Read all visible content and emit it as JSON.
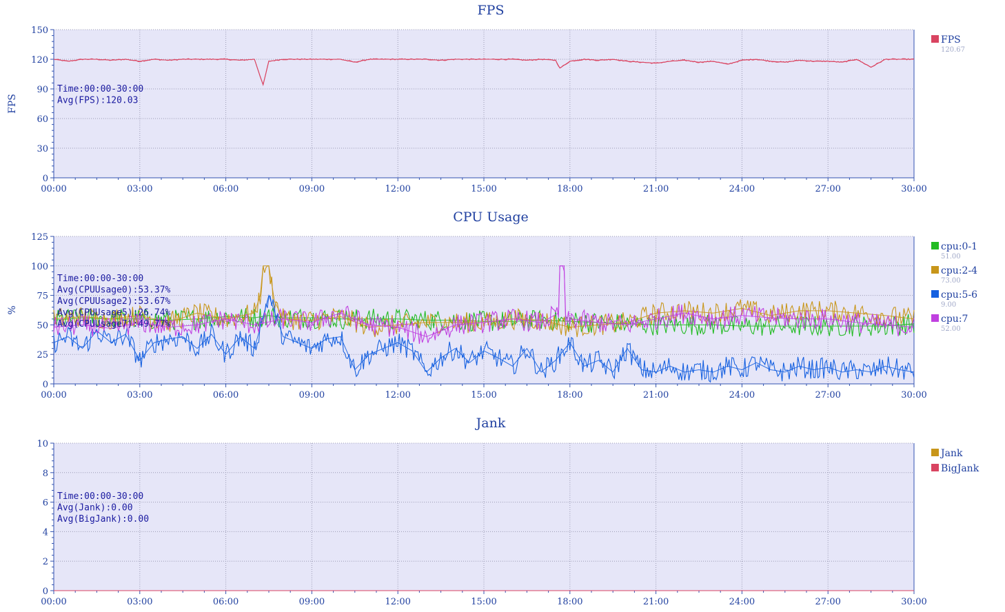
{
  "chart_data": [
    {
      "type": "line",
      "title": "FPS",
      "ylabel": "FPS",
      "ylim": [
        0,
        150
      ],
      "yticks": [
        "0",
        "30",
        "60",
        "90",
        "120",
        "150"
      ],
      "x_range_minutes": [
        0,
        30
      ],
      "xticks": [
        "00:00",
        "03:00",
        "06:00",
        "09:00",
        "12:00",
        "15:00",
        "18:00",
        "21:00",
        "24:00",
        "27:00",
        "30:00"
      ],
      "info_lines": [
        "Time:00:00-30:00",
        "Avg(FPS):120.03"
      ],
      "grid": true,
      "legend_position": "right",
      "series": [
        {
          "name": "FPS",
          "legend_value": "120.67",
          "color": "#d94461",
          "x": [
            0,
            0.5,
            1,
            1.5,
            2,
            2.5,
            3,
            3.5,
            4,
            4.5,
            5,
            5.5,
            6,
            6.5,
            7,
            7.3,
            7.5,
            8,
            8.5,
            9,
            9.5,
            10,
            10.5,
            11,
            11.5,
            12,
            12.5,
            13,
            13.5,
            14,
            14.5,
            15,
            15.5,
            16,
            16.5,
            17,
            17.5,
            17.65,
            18,
            18.5,
            19,
            19.5,
            20,
            20.5,
            21,
            21.5,
            22,
            22.5,
            23,
            23.5,
            24,
            24.5,
            25,
            25.5,
            26,
            26.5,
            27,
            27.5,
            28,
            28.5,
            29,
            29.5,
            30
          ],
          "values": [
            120,
            118,
            120,
            120,
            119,
            120,
            118,
            120,
            119,
            120,
            120,
            120,
            120,
            119,
            120,
            94,
            118,
            120,
            120,
            120,
            120,
            120,
            117,
            120,
            120,
            120,
            120,
            120,
            119,
            120,
            120,
            120,
            120,
            120,
            119,
            120,
            119,
            111,
            118,
            120,
            119,
            120,
            118,
            117,
            116,
            118,
            119,
            117,
            118,
            115,
            119,
            120,
            118,
            117,
            119,
            118,
            118,
            117,
            120,
            112,
            120,
            120,
            120
          ]
        }
      ]
    },
    {
      "type": "line",
      "title": "CPU Usage",
      "ylabel": "%",
      "ylim": [
        0,
        125
      ],
      "yticks": [
        "0",
        "25",
        "50",
        "75",
        "100",
        "125"
      ],
      "x_range_minutes": [
        0,
        30
      ],
      "xticks": [
        "00:00",
        "03:00",
        "06:00",
        "09:00",
        "12:00",
        "15:00",
        "18:00",
        "21:00",
        "24:00",
        "27:00",
        "30:00"
      ],
      "info_lines": [
        "Time:00:00-30:00",
        "Avg(CPUUsage0):53.37%",
        "Avg(CPUUsage2):53.67%",
        "Avg(CPUUsage5):26.74%",
        "Avg(CPUUsage7):49.77%"
      ],
      "grid": true,
      "legend_position": "right",
      "series": [
        {
          "name": "cpu:0-1",
          "legend_value": "51.00",
          "color": "#22bb22",
          "x": [
            0,
            1,
            2,
            3,
            4,
            5,
            6,
            7,
            7.5,
            8,
            9,
            10,
            11,
            12,
            13,
            14,
            15,
            16,
            17,
            18,
            19,
            20,
            21,
            22,
            23,
            24,
            25,
            26,
            27,
            28,
            29,
            30
          ],
          "values": [
            54,
            56,
            55,
            55,
            54,
            55,
            57,
            56,
            58,
            56,
            56,
            55,
            55,
            55,
            54,
            54,
            53,
            53,
            54,
            53,
            52,
            51,
            50,
            50,
            50,
            49,
            49,
            49,
            49,
            49,
            49,
            51
          ]
        },
        {
          "name": "cpu:2-4",
          "legend_value": "73.00",
          "color": "#c8961a",
          "x": [
            0,
            1,
            2,
            3,
            4,
            5,
            6,
            7,
            7.2,
            7.3,
            7.5,
            7.7,
            8,
            9,
            10,
            11,
            12,
            13,
            14,
            15,
            16,
            17,
            18,
            19,
            20,
            21,
            22,
            23,
            24,
            25,
            26,
            27,
            28,
            29,
            30
          ],
          "values": [
            55,
            57,
            55,
            58,
            52,
            60,
            55,
            60,
            75,
            100,
            100,
            70,
            55,
            54,
            57,
            48,
            50,
            52,
            52,
            52,
            55,
            54,
            48,
            50,
            52,
            60,
            62,
            60,
            64,
            58,
            62,
            62,
            60,
            58,
            55
          ]
        },
        {
          "name": "cpu:5-6",
          "legend_value": "9.00",
          "color": "#1560e0",
          "x": [
            0,
            0.5,
            1,
            1.5,
            2,
            2.5,
            3,
            3.5,
            4,
            4.5,
            5,
            5.5,
            6,
            6.5,
            7,
            7.5,
            8,
            8.5,
            9,
            9.5,
            10,
            10.5,
            11,
            11.5,
            12,
            12.5,
            13,
            13.5,
            14,
            14.5,
            15,
            15.5,
            16,
            16.5,
            17,
            17.5,
            18,
            18.5,
            19,
            19.5,
            20,
            20.5,
            21,
            21.5,
            22,
            22.5,
            23,
            23.5,
            24,
            24.5,
            25,
            25.5,
            26,
            26.5,
            27,
            27.5,
            28,
            28.5,
            29,
            29.5,
            30
          ],
          "values": [
            35,
            40,
            30,
            45,
            35,
            42,
            20,
            35,
            38,
            40,
            30,
            42,
            25,
            40,
            30,
            75,
            40,
            35,
            30,
            38,
            40,
            12,
            25,
            30,
            35,
            28,
            10,
            22,
            30,
            18,
            28,
            22,
            15,
            30,
            10,
            20,
            35,
            15,
            20,
            10,
            30,
            12,
            10,
            15,
            10,
            12,
            10,
            15,
            12,
            18,
            12,
            10,
            15,
            12,
            14,
            10,
            12,
            10,
            15,
            12,
            10
          ]
        },
        {
          "name": "cpu:7",
          "legend_value": "52.00",
          "color": "#c040e0",
          "x": [
            0,
            1,
            2,
            3,
            4,
            5,
            6,
            7,
            8,
            9,
            10,
            11,
            12,
            13,
            14,
            15,
            16,
            17,
            17.6,
            17.65,
            17.8,
            17.85,
            18,
            19,
            20,
            21,
            22,
            23,
            24,
            25,
            26,
            27,
            28,
            29,
            30
          ],
          "values": [
            48,
            50,
            47,
            52,
            48,
            50,
            55,
            50,
            55,
            52,
            60,
            50,
            48,
            40,
            50,
            52,
            55,
            52,
            60,
            100,
            100,
            50,
            55,
            52,
            50,
            55,
            60,
            55,
            58,
            56,
            55,
            55,
            52,
            50,
            48
          ]
        }
      ]
    },
    {
      "type": "line",
      "title": "Jank",
      "ylabel": "",
      "ylim": [
        0,
        10
      ],
      "yticks": [
        "0",
        "2",
        "4",
        "6",
        "8",
        "10"
      ],
      "x_range_minutes": [
        0,
        30
      ],
      "xticks": [
        "00:00",
        "03:00",
        "06:00",
        "09:00",
        "12:00",
        "15:00",
        "18:00",
        "21:00",
        "24:00",
        "27:00",
        "30:00"
      ],
      "info_lines": [
        "Time:00:00-30:00",
        "Avg(Jank):0.00",
        "Avg(BigJank):0.00"
      ],
      "grid": true,
      "legend_position": "right",
      "series": [
        {
          "name": "Jank",
          "legend_value": "",
          "color": "#c8961a",
          "x": [
            0,
            30
          ],
          "values": [
            0,
            0
          ]
        },
        {
          "name": "BigJank",
          "legend_value": "",
          "color": "#d94461",
          "x": [
            0,
            30
          ],
          "values": [
            0,
            0
          ]
        }
      ]
    }
  ]
}
